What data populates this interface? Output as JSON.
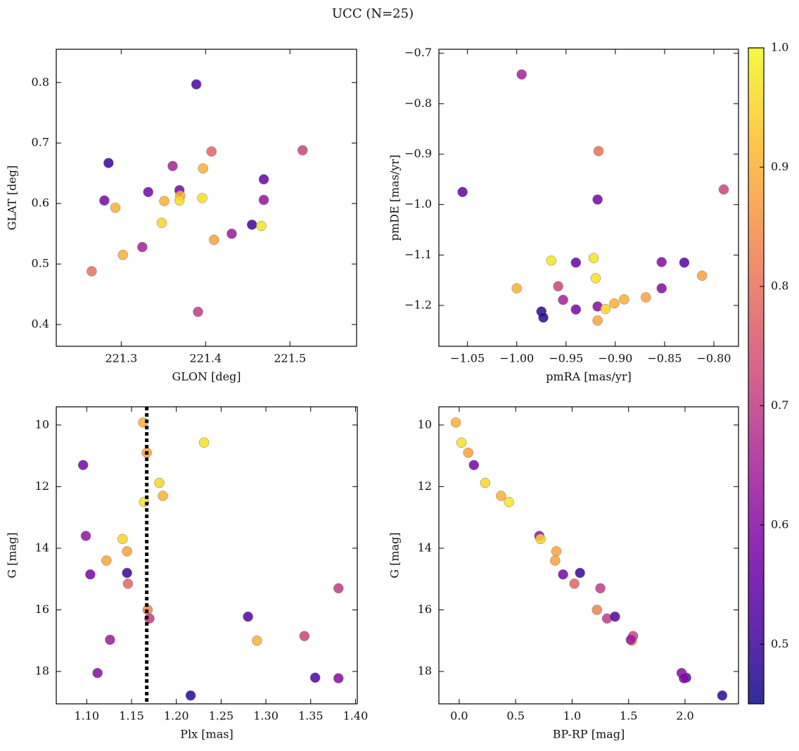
{
  "suptitle": "UCC (N=25)",
  "colorbar": {
    "cmap": "plasma",
    "clim": [
      0.45,
      1.0
    ],
    "cticks": [
      0.5,
      0.6,
      0.7,
      0.8,
      0.9,
      {
        "value": 1.0,
        "label": "1.0"
      }
    ]
  },
  "chart_data": [
    {
      "type": "scatter",
      "xlabel": "GLON [deg]",
      "ylabel": "GLAT [deg]",
      "x": [
        221.265,
        221.28,
        221.285,
        221.293,
        221.302,
        221.325,
        221.332,
        221.348,
        221.351,
        221.361,
        221.369,
        221.37,
        221.369,
        221.389,
        221.391,
        221.396,
        221.397,
        221.407,
        221.41,
        221.431,
        221.455,
        221.466,
        221.469,
        221.469,
        221.515
      ],
      "values": [
        0.488,
        0.605,
        0.667,
        0.593,
        0.515,
        0.528,
        0.619,
        0.568,
        0.604,
        0.662,
        0.622,
        0.613,
        0.605,
        0.797,
        0.421,
        0.609,
        0.658,
        0.686,
        0.54,
        0.55,
        0.565,
        0.563,
        0.64,
        0.606,
        0.688
      ],
      "c": [
        0.8,
        0.58,
        0.5,
        0.9,
        0.9,
        0.65,
        0.58,
        0.95,
        0.9,
        0.65,
        0.58,
        0.9,
        0.96,
        0.52,
        0.7,
        0.97,
        0.9,
        0.78,
        0.88,
        0.63,
        0.5,
        0.97,
        0.55,
        0.62,
        0.72
      ],
      "xlim": [
        221.223,
        221.579
      ],
      "xticks": [
        221.3,
        221.4,
        221.5
      ],
      "ylim": [
        0.364,
        0.855
      ],
      "yticks": [
        0.4,
        0.5,
        0.6,
        0.7,
        0.8
      ]
    },
    {
      "type": "scatter",
      "xlabel": "pmRA [mas/yr]",
      "ylabel": "pmDE [mas/yr]",
      "x": [
        -0.995,
        -1.055,
        -0.917,
        -0.918,
        -0.79,
        -0.965,
        -0.922,
        -0.94,
        -0.853,
        -0.83,
        -1.0,
        -0.92,
        -0.812,
        -0.958,
        -0.853,
        -0.953,
        -0.975,
        -0.973,
        -0.94,
        -0.918,
        -0.91,
        -0.901,
        -0.891,
        -0.869,
        -0.918
      ],
      "values": [
        -0.742,
        -0.975,
        -0.894,
        -0.99,
        -0.97,
        -1.111,
        -1.106,
        -1.115,
        -1.114,
        -1.115,
        -1.166,
        -1.146,
        -1.141,
        -1.162,
        -1.166,
        -1.189,
        -1.212,
        -1.224,
        -1.208,
        -1.202,
        -1.207,
        -1.196,
        -1.188,
        -1.184,
        -1.23
      ],
      "c": [
        0.65,
        0.55,
        0.8,
        0.58,
        0.72,
        0.97,
        0.97,
        0.56,
        0.6,
        0.53,
        0.9,
        0.97,
        0.88,
        0.72,
        0.6,
        0.65,
        0.48,
        0.48,
        0.58,
        0.6,
        0.95,
        0.9,
        0.9,
        0.88,
        0.88
      ],
      "xlim": [
        -1.079,
        -0.775
      ],
      "xticks": [
        {
          "value": -1.05,
          "label": "−1.05"
        },
        {
          "value": -1.0,
          "label": "−1.00"
        },
        {
          "value": -0.95,
          "label": "−0.95"
        },
        {
          "value": -0.9,
          "label": "−0.90"
        },
        {
          "value": -0.85,
          "label": "−0.85"
        },
        {
          "value": -0.8,
          "label": "−0.80"
        }
      ],
      "ylim": [
        -1.281,
        -0.692
      ],
      "yticks": [
        {
          "value": -1.2,
          "label": "−1.2"
        },
        {
          "value": -1.1,
          "label": "−1.1"
        },
        {
          "value": -1.0,
          "label": "−1.0"
        },
        {
          "value": -0.9,
          "label": "−0.9"
        },
        {
          "value": -0.8,
          "label": "−0.8"
        },
        {
          "value": -0.7,
          "label": "−0.7"
        }
      ]
    },
    {
      "type": "scatter",
      "xlabel": "Plx [mas]",
      "ylabel": "G [mag]",
      "vline": 1.167,
      "x": [
        1.163,
        1.167,
        1.231,
        1.096,
        1.181,
        1.185,
        1.164,
        1.099,
        1.14,
        1.145,
        1.122,
        1.145,
        1.104,
        1.146,
        1.381,
        1.168,
        1.17,
        1.28,
        1.29,
        1.343,
        1.126,
        1.112,
        1.355,
        1.381,
        1.216
      ],
      "values": [
        9.92,
        10.9,
        10.57,
        11.3,
        11.88,
        12.3,
        12.5,
        13.6,
        13.7,
        14.1,
        14.4,
        14.8,
        14.85,
        15.15,
        15.3,
        16.0,
        16.28,
        16.22,
        17.0,
        16.85,
        16.97,
        18.05,
        18.2,
        18.22,
        18.78
      ],
      "c": [
        0.9,
        0.88,
        0.97,
        0.58,
        0.95,
        0.9,
        0.97,
        0.62,
        0.95,
        0.88,
        0.88,
        0.5,
        0.58,
        0.78,
        0.7,
        0.83,
        0.7,
        0.53,
        0.9,
        0.72,
        0.63,
        0.6,
        0.52,
        0.6,
        0.48
      ],
      "xlim": [
        1.066,
        1.402
      ],
      "xticks": [
        {
          "value": 1.1,
          "label": "1.10"
        },
        1.15,
        {
          "value": 1.2,
          "label": "1.20"
        },
        1.25,
        {
          "value": 1.3,
          "label": "1.30"
        },
        1.35,
        {
          "value": 1.4,
          "label": "1.40"
        }
      ],
      "ylim": [
        19.05,
        9.41
      ],
      "yticks": [
        10,
        12,
        14,
        16,
        18
      ]
    },
    {
      "type": "scatter",
      "xlabel": "BP-RP [mag]",
      "ylabel": "G [mag]",
      "x": [
        -0.03,
        0.08,
        0.02,
        0.13,
        0.23,
        0.37,
        0.44,
        0.71,
        0.72,
        0.86,
        0.85,
        1.07,
        0.92,
        1.02,
        1.25,
        1.22,
        1.31,
        1.38,
        1.53,
        1.54,
        1.52,
        1.97,
        2.01,
        1.99,
        2.33
      ],
      "values": [
        9.92,
        10.9,
        10.57,
        11.3,
        11.88,
        12.3,
        12.5,
        13.6,
        13.7,
        14.1,
        14.4,
        14.8,
        14.85,
        15.15,
        15.3,
        16.0,
        16.28,
        16.22,
        17.0,
        16.85,
        16.97,
        18.05,
        18.2,
        18.22,
        18.78
      ],
      "c": [
        0.9,
        0.88,
        0.97,
        0.58,
        0.95,
        0.9,
        0.97,
        0.62,
        0.95,
        0.88,
        0.88,
        0.5,
        0.58,
        0.78,
        0.7,
        0.83,
        0.7,
        0.53,
        0.9,
        0.72,
        0.63,
        0.6,
        0.52,
        0.6,
        0.48
      ],
      "xlim": [
        -0.18,
        2.474
      ],
      "xticks": [
        {
          "value": 0.0,
          "label": "0.0"
        },
        0.5,
        {
          "value": 1.0,
          "label": "1.0"
        },
        1.5,
        {
          "value": 2.0,
          "label": "2.0"
        }
      ],
      "ylim": [
        19.05,
        9.41
      ],
      "yticks": [
        10,
        12,
        14,
        16,
        18
      ]
    }
  ]
}
